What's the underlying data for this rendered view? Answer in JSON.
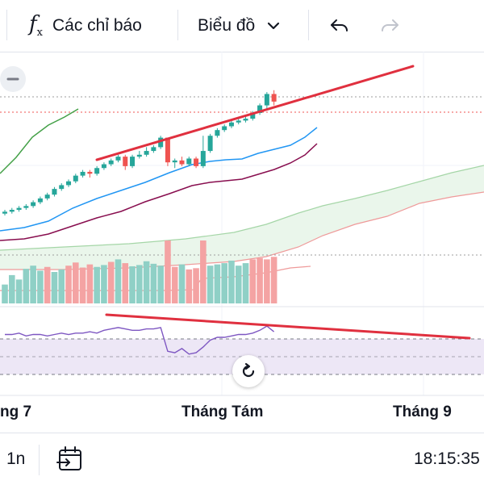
{
  "toolbar": {
    "indicators_label": "Các chỉ báo",
    "chart_type_label": "Biểu đồ",
    "fx_symbol": "f",
    "fx_sub": "x"
  },
  "xaxis": {
    "labels": [
      "ng 7",
      "Tháng Tám",
      "Tháng 9"
    ]
  },
  "bottombar": {
    "interval": "1n",
    "clock": "18:15:35"
  },
  "colors": {
    "up": "#26a69a",
    "down": "#ef5350",
    "up_volume": "#8fd0c6",
    "down_volume": "#f4a3a3",
    "trendline": "#e0303f",
    "bb_upper": "#43a047",
    "bb_mid": "#2196f3",
    "bb_lower": "#880e4f",
    "cloud_fill": "#e8f5e9",
    "rsi_line": "#7e57c2",
    "rsi_band": "#ede7f6"
  },
  "chart_data": {
    "type": "candlestick",
    "candles": [
      {
        "o": 55,
        "c": 56,
        "h": 57,
        "l": 54
      },
      {
        "o": 56,
        "c": 57,
        "h": 58,
        "l": 55
      },
      {
        "o": 57,
        "c": 58,
        "h": 59,
        "l": 56
      },
      {
        "o": 58,
        "c": 59,
        "h": 60,
        "l": 57
      },
      {
        "o": 59,
        "c": 61,
        "h": 62,
        "l": 58
      },
      {
        "o": 61,
        "c": 63,
        "h": 64,
        "l": 60
      },
      {
        "o": 63,
        "c": 65,
        "h": 66,
        "l": 62
      },
      {
        "o": 65,
        "c": 68,
        "h": 69,
        "l": 64
      },
      {
        "o": 68,
        "c": 70,
        "h": 71,
        "l": 67
      },
      {
        "o": 70,
        "c": 72,
        "h": 73,
        "l": 69
      },
      {
        "o": 72,
        "c": 75,
        "h": 76,
        "l": 71
      },
      {
        "o": 75,
        "c": 77,
        "h": 78,
        "l": 74
      },
      {
        "o": 77,
        "c": 76,
        "h": 78,
        "l": 74
      },
      {
        "o": 76,
        "c": 79,
        "h": 80,
        "l": 75
      },
      {
        "o": 79,
        "c": 81,
        "h": 82,
        "l": 78
      },
      {
        "o": 81,
        "c": 83,
        "h": 84,
        "l": 80
      },
      {
        "o": 83,
        "c": 85,
        "h": 86,
        "l": 82
      },
      {
        "o": 85,
        "c": 80,
        "h": 86,
        "l": 78
      },
      {
        "o": 80,
        "c": 85,
        "h": 86,
        "l": 79
      },
      {
        "o": 85,
        "c": 86,
        "h": 88,
        "l": 84
      },
      {
        "o": 86,
        "c": 88,
        "h": 90,
        "l": 85
      },
      {
        "o": 88,
        "c": 90,
        "h": 91,
        "l": 87
      },
      {
        "o": 90,
        "c": 95,
        "h": 96,
        "l": 89
      },
      {
        "o": 95,
        "c": 82,
        "h": 95,
        "l": 80
      },
      {
        "o": 82,
        "c": 83,
        "h": 84,
        "l": 79
      },
      {
        "o": 83,
        "c": 81,
        "h": 85,
        "l": 80
      },
      {
        "o": 81,
        "c": 84,
        "h": 85,
        "l": 80
      },
      {
        "o": 84,
        "c": 80,
        "h": 85,
        "l": 79
      },
      {
        "o": 80,
        "c": 88,
        "h": 96,
        "l": 79
      },
      {
        "o": 88,
        "c": 96,
        "h": 97,
        "l": 87
      },
      {
        "o": 96,
        "c": 99,
        "h": 100,
        "l": 95
      },
      {
        "o": 99,
        "c": 101,
        "h": 102,
        "l": 98
      },
      {
        "o": 101,
        "c": 103,
        "h": 104,
        "l": 100
      },
      {
        "o": 103,
        "c": 104,
        "h": 106,
        "l": 102
      },
      {
        "o": 104,
        "c": 105,
        "h": 107,
        "l": 103
      },
      {
        "o": 105,
        "c": 108,
        "h": 109,
        "l": 104
      },
      {
        "o": 108,
        "c": 112,
        "h": 113,
        "l": 107
      },
      {
        "o": 112,
        "c": 118,
        "h": 119,
        "l": 110
      },
      {
        "o": 118,
        "c": 114,
        "h": 120,
        "l": 112
      }
    ],
    "volumes": [
      30,
      45,
      38,
      55,
      60,
      52,
      58,
      50,
      54,
      60,
      65,
      57,
      62,
      58,
      61,
      66,
      70,
      64,
      59,
      61,
      67,
      63,
      60,
      100,
      58,
      62,
      54,
      56,
      100,
      60,
      62,
      64,
      68,
      60,
      64,
      70,
      72,
      70,
      74
    ],
    "volume_directions": [
      "up",
      "up",
      "up",
      "up",
      "up",
      "up",
      "down",
      "up",
      "up",
      "down",
      "down",
      "down",
      "down",
      "up",
      "up",
      "down",
      "up",
      "down",
      "up",
      "up",
      "up",
      "up",
      "up",
      "down",
      "down",
      "up",
      "down",
      "down",
      "down",
      "up",
      "up",
      "up",
      "up",
      "up",
      "up",
      "down",
      "down",
      "down",
      "down"
    ],
    "rsi": [
      62,
      62,
      63,
      61,
      62,
      62,
      61,
      62,
      63,
      62,
      63,
      63,
      64,
      63,
      65,
      66,
      67,
      66,
      65,
      65,
      66,
      66,
      67,
      50,
      49,
      52,
      48,
      49,
      53,
      58,
      60,
      60,
      61,
      62,
      62,
      63,
      65,
      68,
      64
    ]
  }
}
